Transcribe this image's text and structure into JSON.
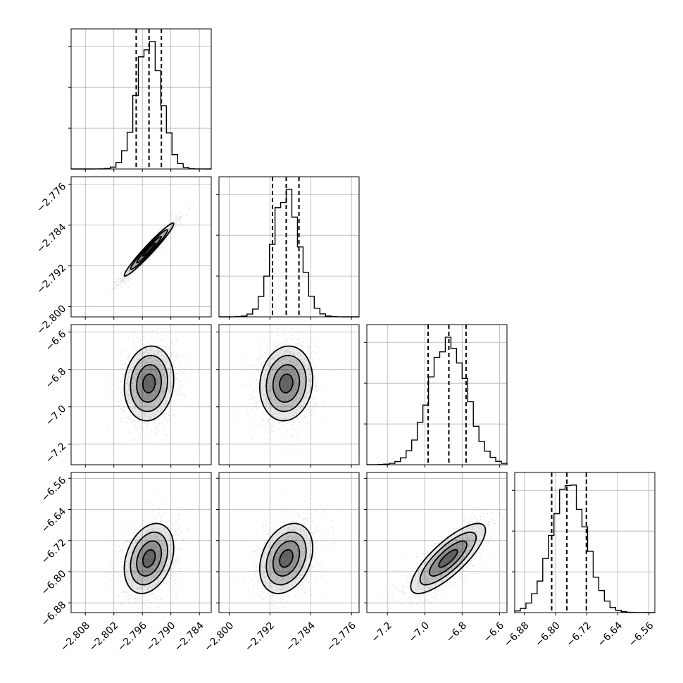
{
  "chart_data": {
    "type": "corner",
    "parameters": [
      {
        "range": [
          -2.811,
          -2.7815
        ],
        "ticks": [
          -2.808,
          -2.802,
          -2.796,
          -2.79,
          -2.784
        ],
        "tick_labels": [
          "−2.808",
          "−2.802",
          "−2.796",
          "−2.790",
          "−2.784"
        ],
        "quantiles": [
          -2.7973,
          -2.7946,
          -2.792
        ],
        "mean": -2.7946,
        "sigma": 0.0026
      },
      {
        "range": [
          -2.802,
          -2.7745
        ],
        "ticks": [
          -2.8,
          -2.792,
          -2.784,
          -2.776
        ],
        "tick_labels": [
          "−2.800",
          "−2.792",
          "−2.784",
          "−2.776"
        ],
        "quantiles": [
          -2.7915,
          -2.7888,
          -2.7863
        ],
        "mean": -2.7888,
        "sigma": 0.0026
      },
      {
        "range": [
          -7.31,
          -6.56
        ],
        "ticks": [
          -7.2,
          -7.0,
          -6.8,
          -6.6
        ],
        "tick_labels": [
          "−7.2",
          "−7.0",
          "−6.8",
          "−6.6"
        ],
        "quantiles": [
          -6.982,
          -6.871,
          -6.779
        ],
        "mean": -6.875,
        "sigma": 0.1
      },
      {
        "range": [
          -6.905,
          -6.545
        ],
        "ticks": [
          -6.88,
          -6.8,
          -6.72,
          -6.64,
          -6.56
        ],
        "tick_labels": [
          "−6.88",
          "−6.80",
          "−6.72",
          "−6.64",
          "−6.56"
        ],
        "quantiles": [
          -6.81,
          -6.771,
          -6.721
        ],
        "mean": -6.766,
        "sigma": 0.045
      }
    ],
    "correlations": {
      "1-0": 0.97,
      "2-0": 0.1,
      "2-1": 0.1,
      "3-0": 0.3,
      "3-1": 0.3,
      "3-2": 0.8
    },
    "quantile_levels": [
      0.16,
      0.5,
      0.84
    ],
    "grid": true,
    "hist_bins": 25,
    "colors": {
      "line": "#000000",
      "grid": "#b0b0b0",
      "points": "#000000"
    }
  }
}
